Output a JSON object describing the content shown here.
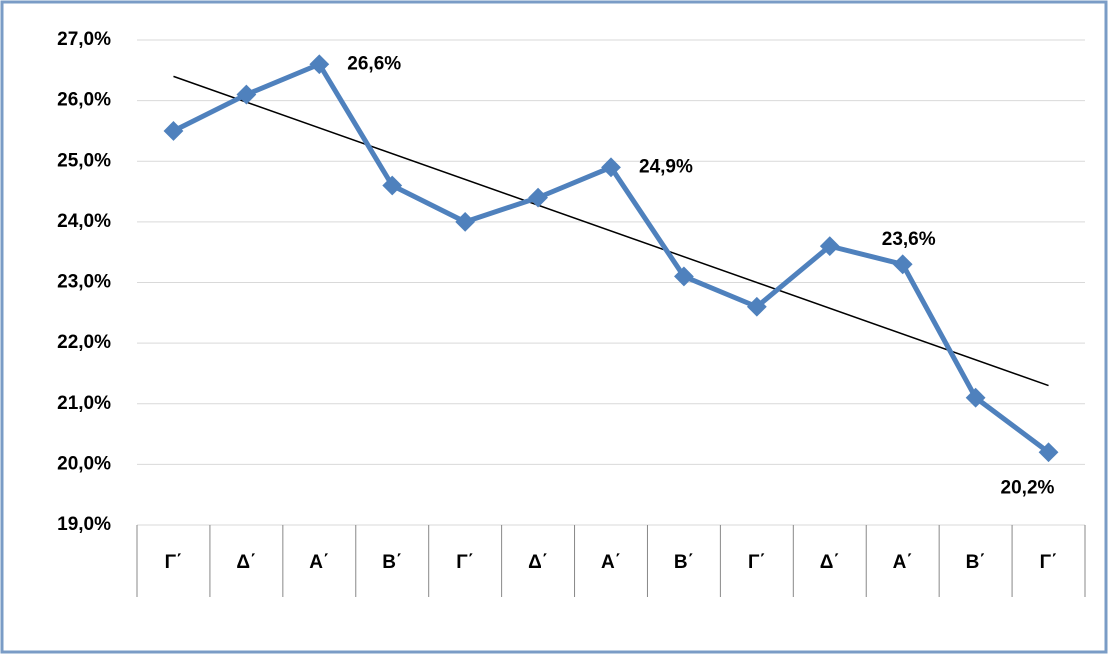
{
  "chart_data": {
    "type": "line",
    "categories": [
      "Γ΄",
      "Δ΄",
      "Α΄",
      "Β΄",
      "Γ΄",
      "Δ΄",
      "Α΄",
      "Β΄",
      "Γ΄",
      "Δ΄",
      "Α΄",
      "Β΄",
      "Γ΄"
    ],
    "series": [
      {
        "color": "#4f81bd",
        "values": [
          25.5,
          26.1,
          26.6,
          24.6,
          24.0,
          24.4,
          24.9,
          23.1,
          22.6,
          23.6,
          23.3,
          21.1,
          20.2
        ],
        "value_labels": [
          null,
          null,
          "26,6%",
          null,
          null,
          null,
          "24,9%",
          null,
          null,
          "23,6%",
          null,
          null,
          "20,2%"
        ]
      }
    ],
    "trendline": {
      "start": 26.4,
      "end": 21.3,
      "color": "#000000"
    },
    "ylim": [
      19,
      27
    ],
    "yticks": [
      {
        "value": 19,
        "label": "19,0%"
      },
      {
        "value": 20,
        "label": "20,0%"
      },
      {
        "value": 21,
        "label": "21,0%"
      },
      {
        "value": 22,
        "label": "22,0%"
      },
      {
        "value": 23,
        "label": "23,0%"
      },
      {
        "value": 24,
        "label": "24,0%"
      },
      {
        "value": 25,
        "label": "25,0%"
      },
      {
        "value": 26,
        "label": "26,0%"
      },
      {
        "value": 27,
        "label": "27,0%"
      }
    ],
    "grid": true
  }
}
